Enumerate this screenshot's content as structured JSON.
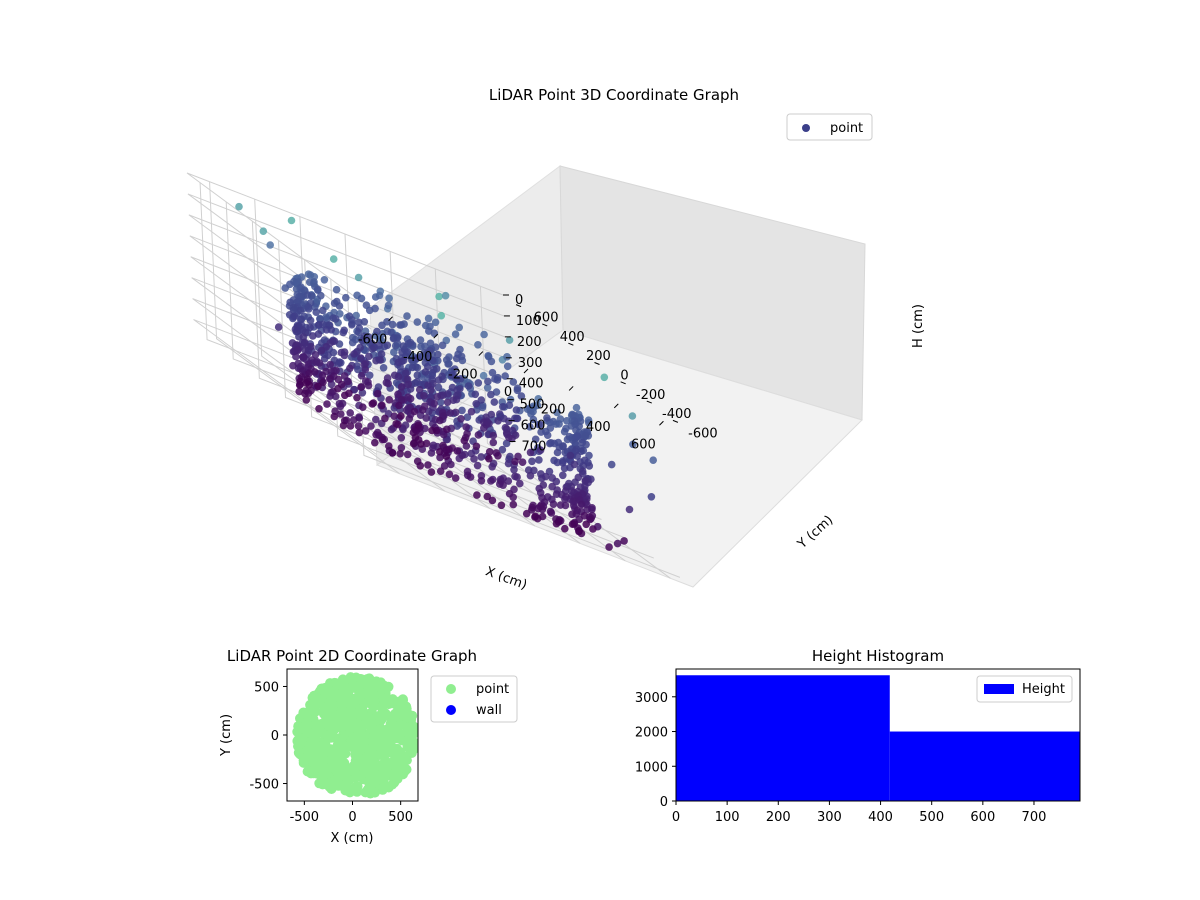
{
  "figure_bg": "#ffffff",
  "chart_data": [
    {
      "type": "scatter",
      "projection": "3d",
      "title": "LiDAR Point 3D Coordinate Graph",
      "xlabel": "X (cm)",
      "ylabel": "Y (cm)",
      "zlabel": "H (cm)",
      "xlim": [
        -700,
        700
      ],
      "ylim": [
        -700,
        700
      ],
      "zlim": [
        0,
        750
      ],
      "zaxis_inverted": true,
      "xticks": [
        -600,
        -400,
        -200,
        0,
        200,
        400,
        600
      ],
      "yticks": [
        -600,
        -400,
        -200,
        0,
        200,
        400,
        600
      ],
      "zticks": [
        0,
        100,
        200,
        300,
        400,
        500,
        600,
        700
      ],
      "grid": true,
      "colormap": "viridis",
      "legend": {
        "placement": "top-right",
        "entries": [
          "point"
        ]
      },
      "series": [
        {
          "name": "point",
          "description_values": "dense ring of points at radius ~550 cm, heights ~200-750 cm, plus cluster near origin and sparse outliers",
          "ring_radius": 550,
          "height_range": [
            200,
            750
          ]
        }
      ]
    },
    {
      "type": "scatter",
      "title": "LiDAR Point 2D Coordinate Graph",
      "xlabel": "X (cm)",
      "ylabel": "Y (cm)",
      "xlim": [
        -680,
        680
      ],
      "ylim": [
        -680,
        680
      ],
      "xticks": [
        -500,
        0,
        500
      ],
      "yticks": [
        -500,
        0,
        500
      ],
      "legend": {
        "placement": "right-outside",
        "entries": [
          "point",
          "wall"
        ]
      },
      "series": [
        {
          "name": "point",
          "color": "#90ee90"
        },
        {
          "name": "wall",
          "color": "#0000ff"
        }
      ]
    },
    {
      "type": "bar",
      "subtype": "histogram",
      "title": "Height Histogram",
      "xlim": [
        0,
        790
      ],
      "ylim": [
        0,
        3800
      ],
      "xticks": [
        0,
        100,
        200,
        300,
        400,
        500,
        600,
        700
      ],
      "yticks": [
        0,
        1000,
        2000,
        3000
      ],
      "bins": [
        {
          "from": 0,
          "to": 418,
          "count": 3620
        },
        {
          "from": 418,
          "to": 790,
          "count": 2000
        }
      ],
      "color": "#0000ff",
      "legend": {
        "placement": "top-right",
        "entries": [
          "Height"
        ]
      }
    }
  ]
}
